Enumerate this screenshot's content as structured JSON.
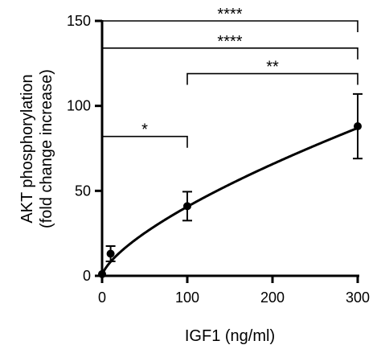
{
  "chart_data": {
    "type": "scatter",
    "xlabel": "IGF1 (ng/ml)",
    "ylabel": [
      "AKT phosphorylation",
      "(fold change increase)"
    ],
    "xlim": [
      0,
      300
    ],
    "ylim": [
      0,
      150
    ],
    "x_ticks": [
      0,
      100,
      200,
      300
    ],
    "y_ticks": [
      0,
      50,
      100,
      150
    ],
    "grid": false,
    "legend": "none",
    "points": [
      {
        "x": 0,
        "y": 1,
        "err": 0
      },
      {
        "x": 10,
        "y": 13,
        "err": 4.5
      },
      {
        "x": 100,
        "y": 41,
        "err": 8.5
      },
      {
        "x": 300,
        "y": 88,
        "err": 19
      }
    ],
    "fit_curve": {
      "type": "power",
      "a": 1.68,
      "b": 0.692
    },
    "significance": [
      {
        "x1": 0,
        "x2": 100,
        "y": 82,
        "label": "*"
      },
      {
        "x1": 100,
        "x2": 300,
        "y": 119,
        "label": "**"
      },
      {
        "x1": 0,
        "x2": 300,
        "y": 134,
        "label": "****"
      },
      {
        "x1": 0,
        "x2": 300,
        "y": 150,
        "label": "****"
      }
    ]
  }
}
